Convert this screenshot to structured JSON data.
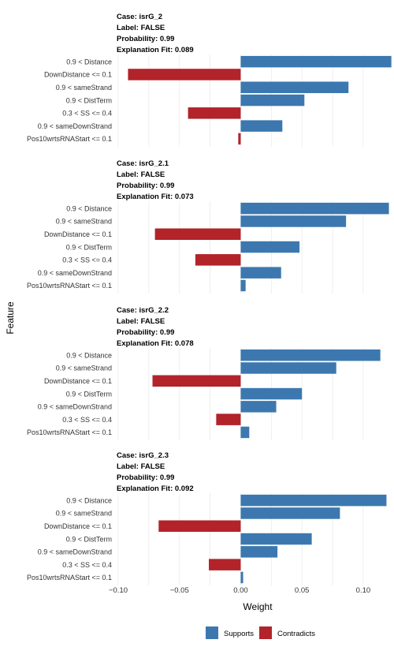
{
  "chart_data": {
    "type": "bar",
    "orientation": "horizontal",
    "xlabel": "Weight",
    "ylabel": "Feature",
    "xlim": [
      -0.1,
      0.12
    ],
    "xticks": [
      -0.1,
      -0.05,
      0.0,
      0.05,
      0.1
    ],
    "xtick_labels": [
      "−0.10",
      "−0.05",
      "0.00",
      "0.05",
      "0.10"
    ],
    "grid": true,
    "legend": {
      "position": "bottom",
      "entries": [
        {
          "label": "Supports",
          "color": "#3C78AF"
        },
        {
          "label": "Contradicts",
          "color": "#B2232A"
        }
      ]
    },
    "panels": [
      {
        "header": [
          "Case: isrG_2",
          "Label: FALSE",
          "Probability: 0.99",
          "Explanation Fit: 0.089"
        ],
        "features": [
          "0.9 < Distance",
          "DownDistance <= 0.1",
          "0.9 < sameStrand",
          "0.9 < DistTerm",
          "0.3 < SS <= 0.4",
          "0.9 < sameDownStrand",
          "Pos10wrtsRNAStart <= 0.1"
        ],
        "values": [
          0.123,
          -0.092,
          0.088,
          0.052,
          -0.043,
          0.034,
          -0.002
        ]
      },
      {
        "header": [
          "Case: isrG_2.1",
          "Label: FALSE",
          "Probability: 0.99",
          "Explanation Fit: 0.073"
        ],
        "features": [
          "0.9 < Distance",
          "0.9 < sameStrand",
          "DownDistance <= 0.1",
          "0.9 < DistTerm",
          "0.3 < SS <= 0.4",
          "0.9 < sameDownStrand",
          "Pos10wrtsRNAStart <= 0.1"
        ],
        "values": [
          0.121,
          0.086,
          -0.07,
          0.048,
          -0.037,
          0.033,
          0.004
        ]
      },
      {
        "header": [
          "Case: isrG_2.2",
          "Label: FALSE",
          "Probability: 0.99",
          "Explanation Fit: 0.078"
        ],
        "features": [
          "0.9 < Distance",
          "0.9 < sameStrand",
          "DownDistance <= 0.1",
          "0.9 < DistTerm",
          "0.9 < sameDownStrand",
          "0.3 < SS <= 0.4",
          "Pos10wrtsRNAStart <= 0.1"
        ],
        "values": [
          0.114,
          0.078,
          -0.072,
          0.05,
          0.029,
          -0.02,
          0.007
        ]
      },
      {
        "header": [
          "Case: isrG_2.3",
          "Label: FALSE",
          "Probability: 0.99",
          "Explanation Fit: 0.092"
        ],
        "features": [
          "0.9 < Distance",
          "0.9 < sameStrand",
          "DownDistance <= 0.1",
          "0.9 < DistTerm",
          "0.9 < sameDownStrand",
          "0.3 < SS <= 0.4",
          "Pos10wrtsRNAStart <= 0.1"
        ],
        "values": [
          0.119,
          0.081,
          -0.067,
          0.058,
          0.03,
          -0.026,
          0.002
        ]
      }
    ]
  }
}
